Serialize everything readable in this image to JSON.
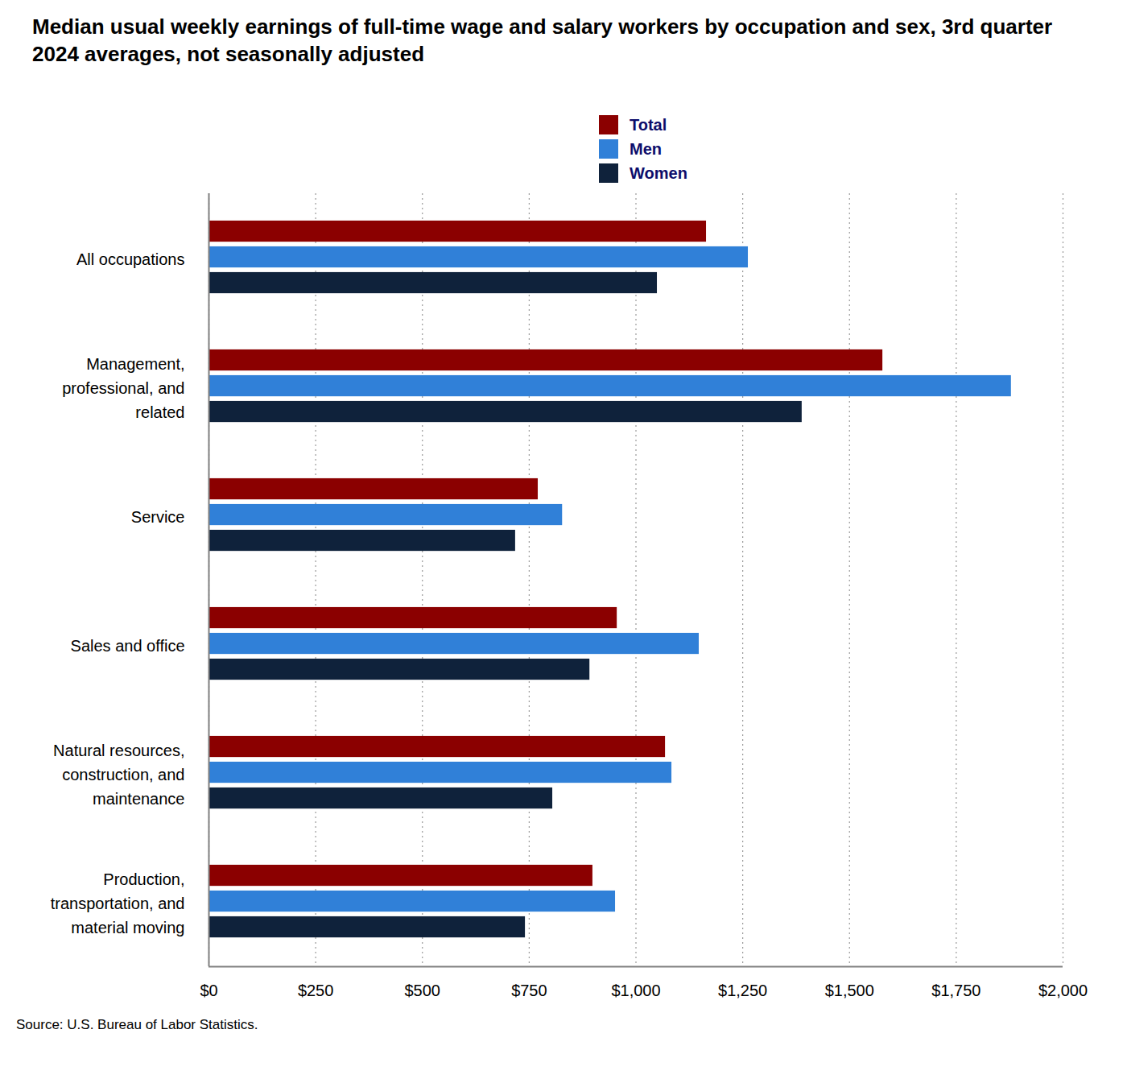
{
  "chart_data": {
    "type": "bar",
    "orientation": "horizontal",
    "title": "Median usual weekly earnings of full-time wage and salary workers by occupation and sex, 3rd quarter 2024 averages, not seasonally adjusted",
    "source": "Source: U.S. Bureau of Labor Statistics.",
    "categories": [
      "All occupations",
      "Management, professional, and related",
      "Service",
      "Sales and office",
      "Natural resources, construction, and maintenance",
      "Production, transportation, and material moving"
    ],
    "series": [
      {
        "name": "Total",
        "color": "#8b0000",
        "values": [
          1165,
          1578,
          771,
          956,
          1069,
          899
        ]
      },
      {
        "name": "Men",
        "color": "#3080d8",
        "values": [
          1263,
          1879,
          828,
          1148,
          1084,
          952
        ]
      },
      {
        "name": "Women",
        "color": "#0f223b",
        "values": [
          1050,
          1389,
          718,
          892,
          805,
          741
        ]
      }
    ],
    "xlim": [
      0,
      2000
    ],
    "xticks": [
      {
        "value": 0,
        "label": "$0"
      },
      {
        "value": 250,
        "label": "$250"
      },
      {
        "value": 500,
        "label": "$500"
      },
      {
        "value": 750,
        "label": "$750"
      },
      {
        "value": 1000,
        "label": "$1,000"
      },
      {
        "value": 1250,
        "label": "$1,250"
      },
      {
        "value": 1500,
        "label": "$1,500"
      },
      {
        "value": 1750,
        "label": "$1,750"
      },
      {
        "value": 2000,
        "label": "$2,000"
      }
    ],
    "grid": true,
    "legend": "top"
  }
}
